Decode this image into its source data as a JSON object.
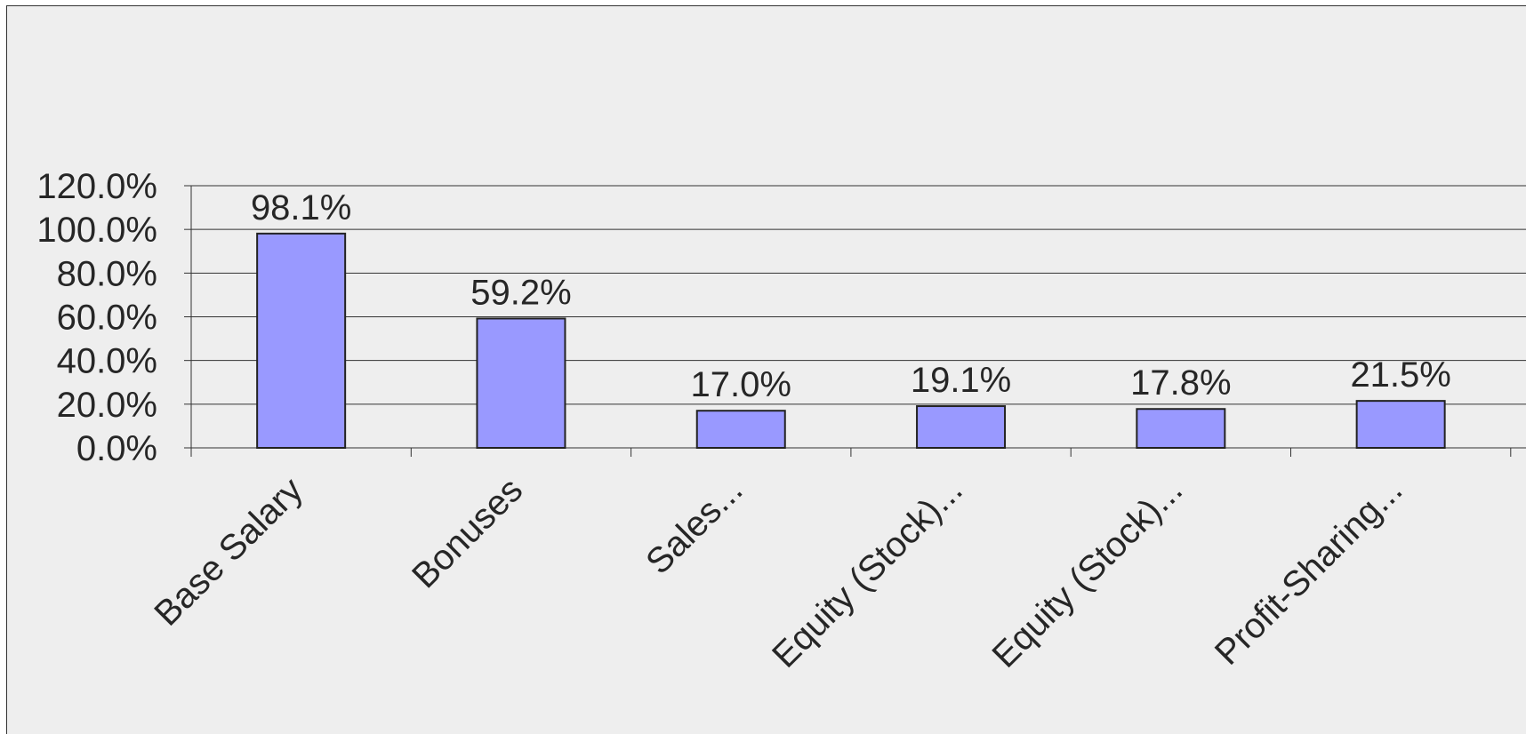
{
  "chart_data": {
    "type": "bar",
    "categories": [
      "Base Salary",
      "Bonuses",
      "Sales...",
      "Equity (Stock)...",
      "Equity (Stock)...",
      "Profit-Sharing..."
    ],
    "values": [
      98.1,
      59.2,
      17.0,
      19.1,
      17.8,
      21.5
    ],
    "data_labels": [
      "98.1%",
      "59.2%",
      "17.0%",
      "19.1%",
      "17.8%",
      "21.5%"
    ],
    "y_ticks": [
      "0.0%",
      "20.0%",
      "40.0%",
      "60.0%",
      "80.0%",
      "100.0%",
      "120.0%"
    ],
    "ylim": [
      0,
      120
    ],
    "grid": true,
    "legend": "none",
    "colors": {
      "bar_fill": "#9999ff",
      "bar_stroke": "#222222",
      "grid": "#333333",
      "background": "#eeeeee",
      "text": "#262626"
    }
  }
}
